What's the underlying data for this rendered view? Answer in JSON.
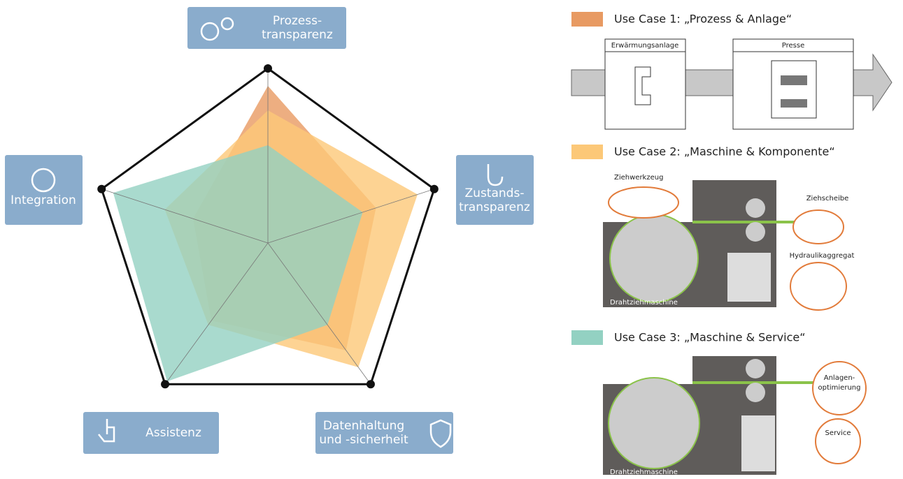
{
  "chart_data": {
    "type": "radar",
    "categories": [
      [
        "Prozess-",
        "transparenz"
      ],
      [
        "Zustands-",
        "transparenz"
      ],
      [
        "Datenhaltung",
        "und -sicherheit"
      ],
      [
        "Assistenz"
      ],
      [
        "Integration"
      ]
    ],
    "rlim": [
      0,
      100
    ],
    "series": [
      {
        "name": "Use Case 1: „Prozess & Anlage“",
        "color": "#e89a62",
        "values": [
          90,
          65,
          76,
          55,
          45
        ]
      },
      {
        "name": "Use Case 2: „Maschine & Komponente“",
        "color": "#fcc878",
        "values": [
          76,
          90,
          88,
          58,
          62
        ]
      },
      {
        "name": "Use Case 3: „Maschine & Service“",
        "color": "#93d1c2",
        "values": [
          56,
          57,
          58,
          98,
          93
        ]
      }
    ]
  },
  "panels": [
    {
      "labels": [
        "Erwärmungsanlage",
        "Presse"
      ]
    },
    {
      "labels": [
        "Ziehwerkzeug",
        "Ziehscheibe",
        "Hydraulikaggregat",
        "Drahtziehmaschine"
      ]
    },
    {
      "labels": [
        [
          "Anlagen-",
          "optimierung"
        ],
        "Service",
        "Drahtziehmaschine"
      ]
    }
  ]
}
